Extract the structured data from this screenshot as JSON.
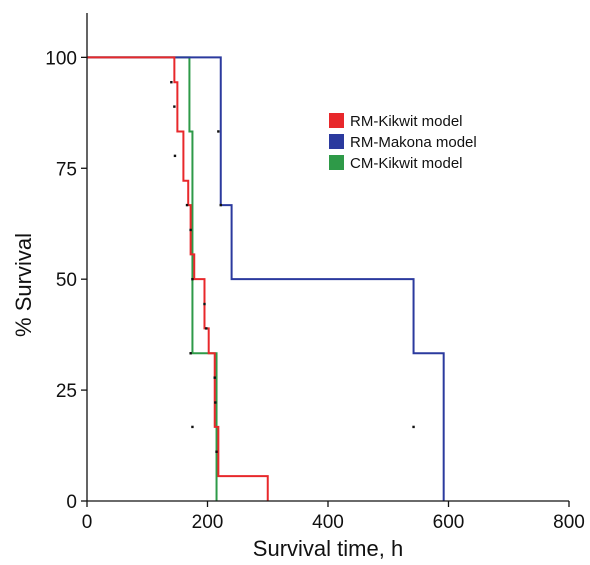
{
  "chart_data": {
    "type": "line",
    "subtype": "kaplan-meier-step",
    "title": "",
    "xlabel": "Survival time, h",
    "ylabel": "% Survival",
    "xlim": [
      0,
      800
    ],
    "ylim": [
      0,
      110
    ],
    "xticks": [
      0,
      200,
      400,
      600,
      800
    ],
    "yticks": [
      0,
      25,
      50,
      75,
      100
    ],
    "xtick_labels": [
      "0",
      "200",
      "400",
      "600",
      "800"
    ],
    "ytick_labels": [
      "0",
      "25",
      "50",
      "75",
      "100"
    ],
    "grid": false,
    "legend_position": "top-right",
    "series": [
      {
        "name": "RM-Kikwit model",
        "color": "#e8282b",
        "x": [
          0,
          137,
          145,
          150,
          160,
          168,
          172,
          178,
          195,
          202,
          212,
          218,
          300
        ],
        "y": [
          100,
          100,
          94.4,
          83.3,
          72.2,
          66.7,
          55.6,
          50,
          38.9,
          33.3,
          16.7,
          5.6,
          0
        ],
        "censor_ticks": [
          [
            140,
            94.4
          ],
          [
            145,
            88.9
          ],
          [
            146,
            77.8
          ],
          [
            166,
            66.7
          ],
          [
            172,
            61.1
          ],
          [
            175,
            50
          ],
          [
            195,
            44.4
          ],
          [
            198,
            38.9
          ],
          [
            212,
            27.8
          ],
          [
            213,
            22.2
          ],
          [
            215,
            11.1
          ]
        ]
      },
      {
        "name": "RM-Makona model",
        "color": "#2b3a9e",
        "x": [
          0,
          218,
          222,
          240,
          542,
          592
        ],
        "y": [
          100,
          100,
          66.7,
          50,
          33.3,
          16.7
        ],
        "end_y": 0,
        "censor_ticks": [
          [
            218,
            83.3
          ],
          [
            222,
            66.7
          ],
          [
            542,
            16.7
          ]
        ]
      },
      {
        "name": "CM-Kikwit model",
        "color": "#2e9a48",
        "x": [
          0,
          148,
          170,
          175,
          215
        ],
        "y": [
          100,
          100,
          83.3,
          33.3,
          16.7
        ],
        "end_y": 0,
        "censor_ticks": [
          [
            172,
            33.3
          ],
          [
            175,
            16.7
          ]
        ]
      }
    ]
  }
}
